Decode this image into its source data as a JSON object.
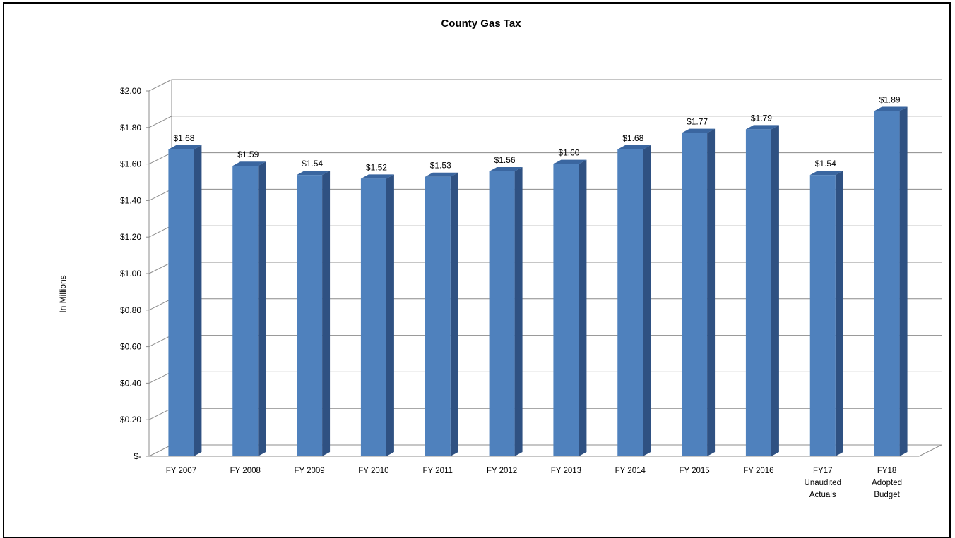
{
  "chart_data": {
    "type": "bar",
    "title": "County Gas Tax",
    "ylabel": "In Millions",
    "xlabel": "",
    "ylim": [
      0,
      2.0
    ],
    "y_ticks": [
      "$-",
      "$0.20",
      "$0.40",
      "$0.60",
      "$0.80",
      "$1.00",
      "$1.20",
      "$1.40",
      "$1.60",
      "$1.80",
      "$2.00"
    ],
    "categories": [
      [
        "FY 2007"
      ],
      [
        "FY 2008"
      ],
      [
        "FY 2009"
      ],
      [
        "FY 2010"
      ],
      [
        "FY 2011"
      ],
      [
        "FY 2012"
      ],
      [
        "FY 2013"
      ],
      [
        "FY 2014"
      ],
      [
        "FY 2015"
      ],
      [
        "FY 2016"
      ],
      [
        "FY17",
        "Unaudited",
        "Actuals"
      ],
      [
        "FY18",
        "Adopted",
        "Budget"
      ]
    ],
    "values": [
      1.68,
      1.59,
      1.54,
      1.52,
      1.53,
      1.56,
      1.6,
      1.68,
      1.77,
      1.79,
      1.54,
      1.89
    ],
    "data_labels": [
      "$1.68",
      "$1.59",
      "$1.54",
      "$1.52",
      "$1.53",
      "$1.56",
      "$1.60",
      "$1.68",
      "$1.77",
      "$1.79",
      "$1.54",
      "$1.89"
    ],
    "grid": true,
    "legend": "none",
    "colors": {
      "bar_front": "#4F81BD",
      "bar_side": "#2F5182",
      "bar_top": "#3A66A0",
      "grid": "#8C8C8C"
    }
  }
}
